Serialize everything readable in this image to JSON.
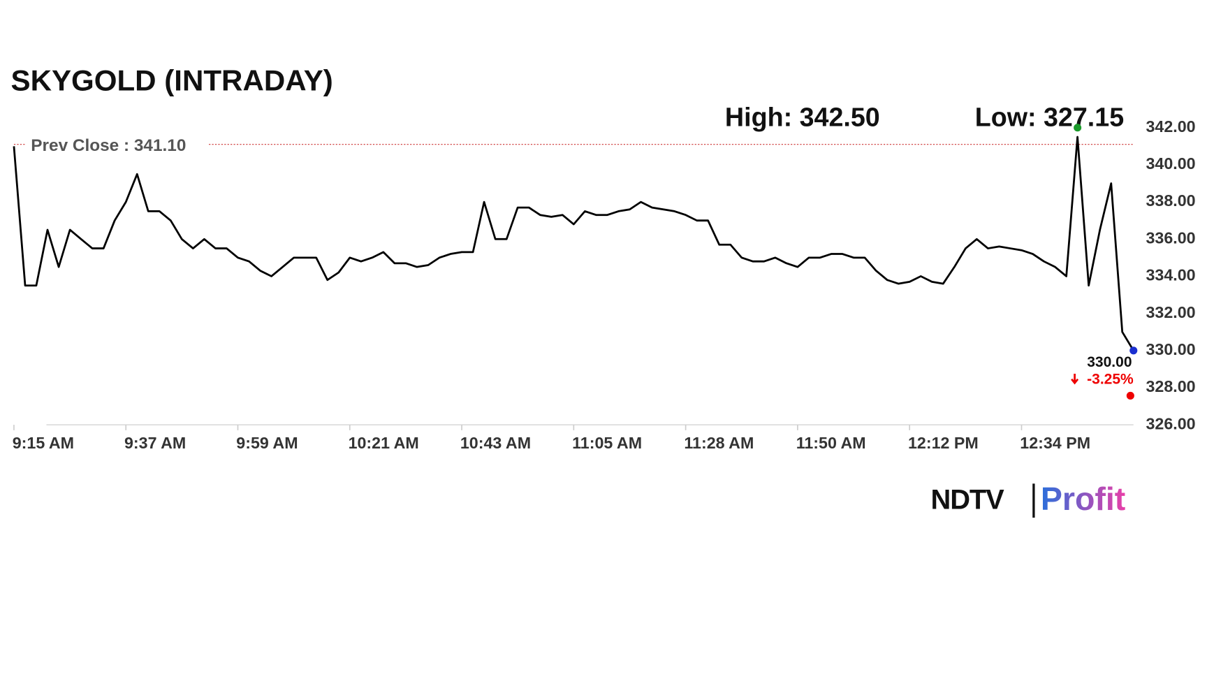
{
  "chart_data": {
    "type": "line",
    "title": "SKYGOLD (INTRADAY)",
    "high_label": "High: 342.50",
    "high": 342.5,
    "low_label": "Low: 327.15",
    "low": 327.15,
    "prev_close_label": "Prev Close : 341.10",
    "prev_close": 341.1,
    "last_label": "330.00",
    "last": 330,
    "change_label": "-3.25%",
    "change": -3.25,
    "brand": [
      "NDTV",
      "Profit"
    ],
    "color": "#000000",
    "xlim": [
      0,
      100
    ],
    "xticks": [
      {
        "value": 0,
        "label": "9:15 AM"
      },
      {
        "value": 10,
        "label": "9:37 AM"
      },
      {
        "value": 20,
        "label": "9:59 AM"
      },
      {
        "value": 30,
        "label": "10:21 AM"
      },
      {
        "value": 40,
        "label": "10:43 AM"
      },
      {
        "value": 50,
        "label": "11:05 AM"
      },
      {
        "value": 60,
        "label": "11:28 AM"
      },
      {
        "value": 70,
        "label": "11:50 AM"
      },
      {
        "value": 80,
        "label": "12:12 PM"
      },
      {
        "value": 90,
        "label": "12:34 PM"
      }
    ],
    "ylim": [
      326,
      342
    ],
    "yticks": [
      {
        "value": 326,
        "label": "326.00"
      },
      {
        "value": 328,
        "label": "328.00"
      },
      {
        "value": 330,
        "label": "330.00"
      },
      {
        "value": 332,
        "label": "332.00"
      },
      {
        "value": 334,
        "label": "334.00"
      },
      {
        "value": 336,
        "label": "336.00"
      },
      {
        "value": 338,
        "label": "338.00"
      },
      {
        "value": 340,
        "label": "340.00"
      },
      {
        "value": 342,
        "label": "342.00"
      }
    ],
    "values": [
      341,
      333.5,
      333.5,
      336.5,
      334.5,
      336.5,
      336,
      335.5,
      335.5,
      337,
      338,
      339.5,
      337.5,
      337.5,
      337,
      336,
      335.5,
      336,
      335.5,
      335.5,
      335,
      334.8,
      334.3,
      334,
      334.5,
      335,
      335,
      335,
      333.8,
      334.2,
      335,
      334.8,
      335,
      335.3,
      334.7,
      334.7,
      334.5,
      334.6,
      335,
      335.2,
      335.3,
      335.3,
      338,
      336,
      336,
      337.7,
      337.7,
      337.3,
      337.2,
      337.3,
      336.8,
      337.5,
      337.3,
      337.3,
      337.5,
      337.6,
      338,
      337.7,
      337.6,
      337.5,
      337.3,
      337,
      337,
      335.7,
      335.7,
      335,
      334.8,
      334.8,
      335,
      334.7,
      334.5,
      335,
      335,
      335.2,
      335.2,
      335,
      335,
      334.3,
      333.8,
      333.6,
      333.7,
      334,
      333.7,
      333.6,
      334.5,
      335.5,
      336,
      335.5,
      335.6,
      335.5,
      335.4,
      335.2,
      334.8,
      334.5,
      334,
      341.5,
      333.5,
      336.5,
      339,
      331,
      330
    ]
  }
}
